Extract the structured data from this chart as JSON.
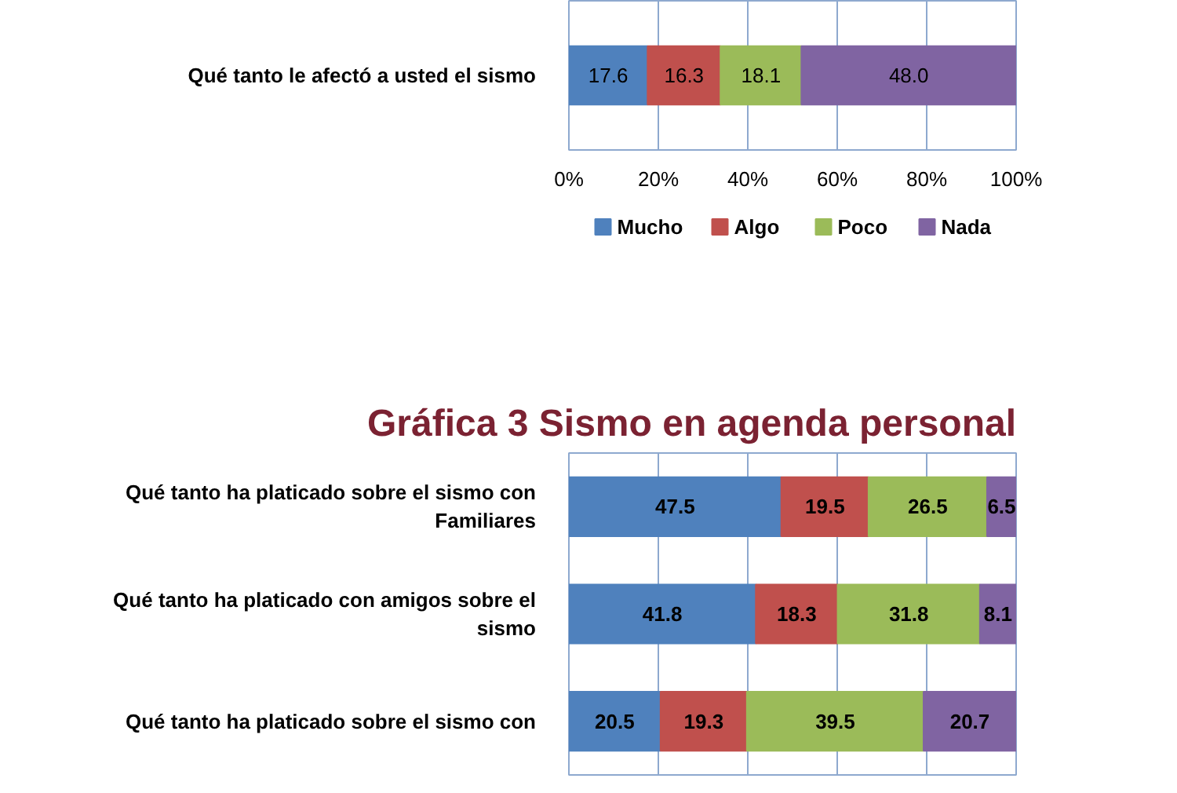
{
  "chart_data": [
    {
      "type": "bar",
      "orientation": "horizontal",
      "stacked": true,
      "categories": [
        "Qué tanto le afectó a usted el sismo"
      ],
      "xlim": [
        0,
        100
      ],
      "xticks": [
        {
          "value": 0,
          "label": "0%"
        },
        {
          "value": 20,
          "label": "20%"
        },
        {
          "value": 40,
          "label": "40%"
        },
        {
          "value": 60,
          "label": "60%"
        },
        {
          "value": 80,
          "label": "80%"
        },
        {
          "value": 100,
          "label": "100%"
        }
      ],
      "grid": "x",
      "legend": "bottom",
      "series": [
        {
          "name": "Mucho",
          "color": "#4f81bd",
          "values": [
            17.6
          ],
          "value_labels": [
            "17.6"
          ]
        },
        {
          "name": "Algo",
          "color": "#c0504d",
          "values": [
            16.3
          ],
          "value_labels": [
            "16.3"
          ]
        },
        {
          "name": "Poco",
          "color": "#9bbb59",
          "values": [
            18.1
          ],
          "value_labels": [
            "18.1"
          ]
        },
        {
          "name": "Nada",
          "color": "#8064a2",
          "values": [
            48.0
          ],
          "value_labels": [
            "48.0"
          ]
        }
      ]
    },
    {
      "type": "bar",
      "orientation": "horizontal",
      "stacked": true,
      "title": "Gráfica 3 Sismo en agenda personal",
      "categories": [
        "Qué tanto ha platicado sobre el sismo con Familiares",
        "Qué tanto ha platicado con amigos sobre el sismo",
        "Qué tanto ha platicado sobre el sismo con"
      ],
      "xlim": [
        0,
        100
      ],
      "xticks": [
        {
          "value": 0,
          "label": null
        },
        {
          "value": 20,
          "label": null
        },
        {
          "value": 40,
          "label": null
        },
        {
          "value": 60,
          "label": null
        },
        {
          "value": 80,
          "label": null
        },
        {
          "value": 100,
          "label": null
        }
      ],
      "grid": "x",
      "tick_labels": "y",
      "data_labels": true,
      "series": [
        {
          "color": "#4f81bd",
          "values": [
            47.5,
            41.8,
            20.5
          ]
        },
        {
          "color": "#c0504d",
          "values": [
            19.5,
            18.3,
            19.3
          ]
        },
        {
          "color": "#9bbb59",
          "values": [
            26.5,
            31.8,
            39.5
          ]
        },
        {
          "color": "#8064a2",
          "values": [
            6.5,
            8.1,
            20.7
          ]
        }
      ]
    }
  ]
}
